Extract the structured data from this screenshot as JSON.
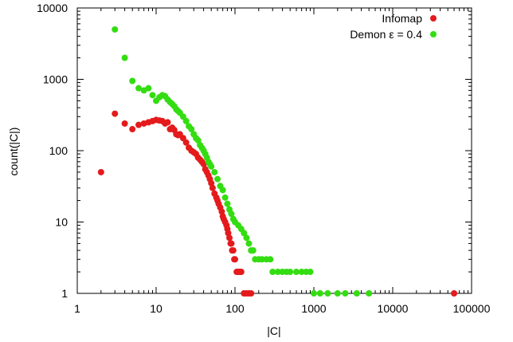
{
  "chart_data": {
    "type": "scatter",
    "xlabel": "|C|",
    "ylabel": "count(|C|)",
    "xscale": "log",
    "yscale": "log",
    "xlim": [
      1,
      100000
    ],
    "ylim": [
      1,
      10000
    ],
    "x_ticks": [
      {
        "value": 1,
        "label": "1"
      },
      {
        "value": 10,
        "label": "10"
      },
      {
        "value": 100,
        "label": "100"
      },
      {
        "value": 1000,
        "label": "1000"
      },
      {
        "value": 10000,
        "label": "10000"
      },
      {
        "value": 100000,
        "label": "100000"
      }
    ],
    "y_ticks": [
      {
        "value": 1,
        "label": "1"
      },
      {
        "value": 10,
        "label": "10"
      },
      {
        "value": 100,
        "label": "100"
      },
      {
        "value": 1000,
        "label": "1000"
      },
      {
        "value": 10000,
        "label": "10000"
      }
    ],
    "legend_position": "top-right",
    "grid": false,
    "series": [
      {
        "name": "Infomap",
        "color": "#e41a1c",
        "points": [
          [
            2,
            50
          ],
          [
            3,
            330
          ],
          [
            4,
            240
          ],
          [
            5,
            200
          ],
          [
            6,
            230
          ],
          [
            7,
            240
          ],
          [
            8,
            250
          ],
          [
            9,
            260
          ],
          [
            10,
            270
          ],
          [
            11,
            265
          ],
          [
            12,
            260
          ],
          [
            13,
            240
          ],
          [
            14,
            250
          ],
          [
            15,
            200
          ],
          [
            16,
            210
          ],
          [
            17,
            195
          ],
          [
            18,
            170
          ],
          [
            19,
            165
          ],
          [
            20,
            170
          ],
          [
            22,
            150
          ],
          [
            24,
            130
          ],
          [
            26,
            110
          ],
          [
            28,
            100
          ],
          [
            30,
            95
          ],
          [
            32,
            90
          ],
          [
            34,
            80
          ],
          [
            36,
            75
          ],
          [
            38,
            70
          ],
          [
            40,
            65
          ],
          [
            42,
            55
          ],
          [
            44,
            50
          ],
          [
            46,
            45
          ],
          [
            48,
            40
          ],
          [
            50,
            35
          ],
          [
            52,
            30
          ],
          [
            55,
            25
          ],
          [
            58,
            22
          ],
          [
            60,
            20
          ],
          [
            62,
            18
          ],
          [
            65,
            16
          ],
          [
            68,
            14
          ],
          [
            70,
            12
          ],
          [
            72,
            11
          ],
          [
            75,
            10
          ],
          [
            78,
            9
          ],
          [
            80,
            8
          ],
          [
            82,
            7
          ],
          [
            85,
            6
          ],
          [
            88,
            5
          ],
          [
            90,
            5
          ],
          [
            92,
            4
          ],
          [
            95,
            4
          ],
          [
            98,
            3
          ],
          [
            100,
            3
          ],
          [
            105,
            2
          ],
          [
            110,
            2
          ],
          [
            115,
            2
          ],
          [
            120,
            2
          ],
          [
            130,
            1
          ],
          [
            140,
            1
          ],
          [
            150,
            1
          ],
          [
            160,
            1
          ],
          [
            60000,
            1
          ]
        ]
      },
      {
        "name": "Demon ε = 0.4",
        "color": "#33dd11",
        "points": [
          [
            3,
            5000
          ],
          [
            4,
            2000
          ],
          [
            5,
            950
          ],
          [
            6,
            750
          ],
          [
            7,
            700
          ],
          [
            8,
            750
          ],
          [
            9,
            600
          ],
          [
            10,
            500
          ],
          [
            11,
            560
          ],
          [
            12,
            600
          ],
          [
            13,
            580
          ],
          [
            14,
            520
          ],
          [
            15,
            480
          ],
          [
            16,
            450
          ],
          [
            17,
            420
          ],
          [
            18,
            380
          ],
          [
            19,
            360
          ],
          [
            20,
            340
          ],
          [
            22,
            300
          ],
          [
            24,
            260
          ],
          [
            26,
            220
          ],
          [
            28,
            200
          ],
          [
            30,
            170
          ],
          [
            32,
            150
          ],
          [
            34,
            140
          ],
          [
            36,
            120
          ],
          [
            38,
            110
          ],
          [
            40,
            100
          ],
          [
            42,
            90
          ],
          [
            44,
            80
          ],
          [
            46,
            70
          ],
          [
            48,
            65
          ],
          [
            50,
            60
          ],
          [
            55,
            50
          ],
          [
            60,
            40
          ],
          [
            65,
            32
          ],
          [
            70,
            28
          ],
          [
            75,
            22
          ],
          [
            80,
            18
          ],
          [
            85,
            15
          ],
          [
            90,
            13
          ],
          [
            95,
            11
          ],
          [
            100,
            10
          ],
          [
            110,
            9
          ],
          [
            120,
            8
          ],
          [
            130,
            7
          ],
          [
            140,
            6
          ],
          [
            150,
            5
          ],
          [
            160,
            4
          ],
          [
            170,
            4
          ],
          [
            180,
            3
          ],
          [
            200,
            3
          ],
          [
            220,
            3
          ],
          [
            250,
            3
          ],
          [
            280,
            3
          ],
          [
            300,
            2
          ],
          [
            350,
            2
          ],
          [
            400,
            2
          ],
          [
            450,
            2
          ],
          [
            500,
            2
          ],
          [
            600,
            2
          ],
          [
            700,
            2
          ],
          [
            800,
            2
          ],
          [
            900,
            2
          ],
          [
            1000,
            1
          ],
          [
            1200,
            1
          ],
          [
            1500,
            1
          ],
          [
            2000,
            1
          ],
          [
            2500,
            1
          ],
          [
            3500,
            1
          ],
          [
            5000,
            1
          ]
        ]
      }
    ]
  }
}
